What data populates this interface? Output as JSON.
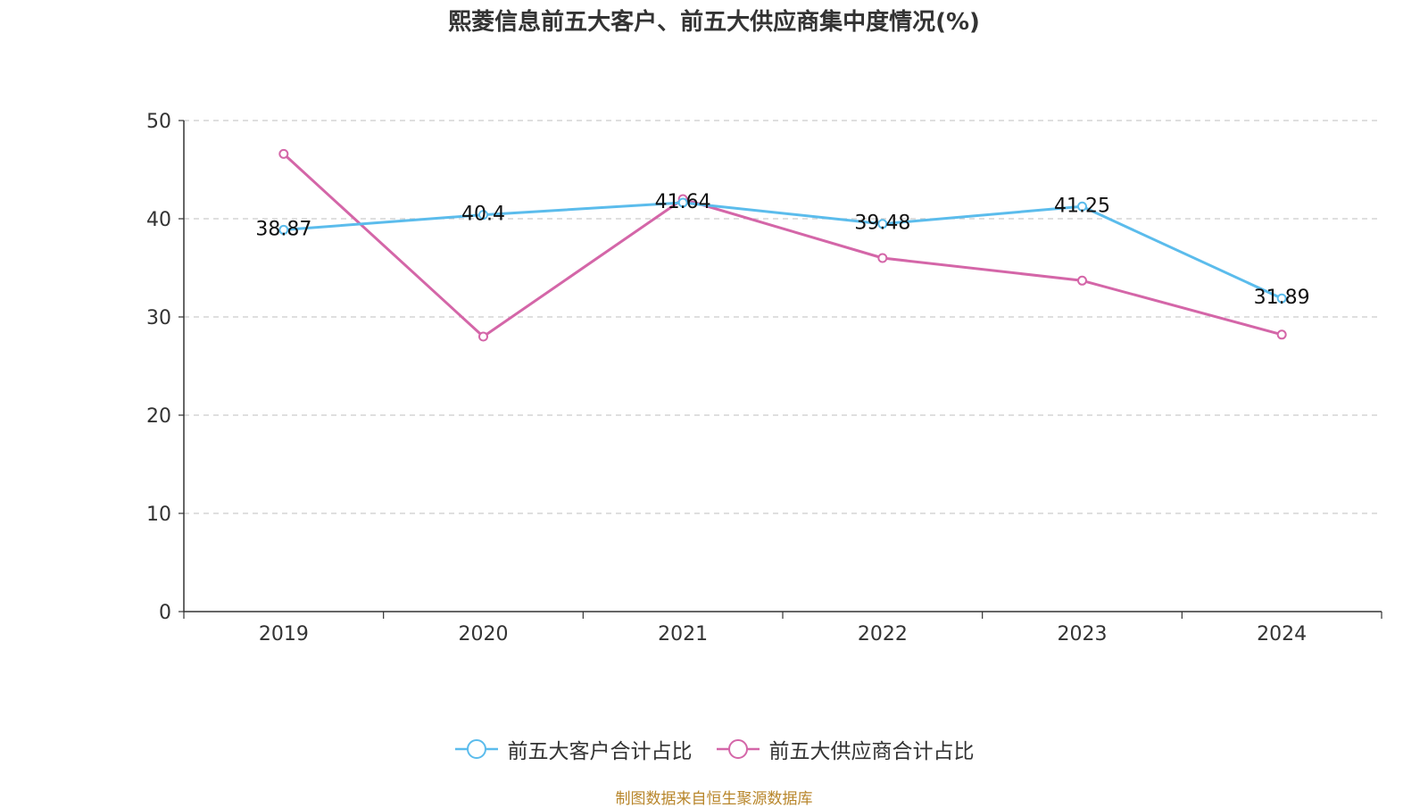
{
  "title": "熙菱信息前五大客户、前五大供应商集中度情况(%)",
  "source": "制图数据来自恒生聚源数据库",
  "colors": {
    "series1": "#5bbcec",
    "series2": "#d466a8",
    "axis": "#333333",
    "grid": "#cccccc"
  },
  "chart_data": {
    "type": "line",
    "title": "熙菱信息前五大客户、前五大供应商集中度情况(%)",
    "categories": [
      "2019",
      "2020",
      "2021",
      "2022",
      "2023",
      "2024"
    ],
    "ylim": [
      0,
      50
    ],
    "yticks": [
      "0",
      "10",
      "20",
      "30",
      "40",
      "50"
    ],
    "grid": true,
    "legend_position": "bottom-center",
    "series": [
      {
        "name": "前五大客户合计占比",
        "values": [
          38.87,
          40.4,
          41.64,
          39.48,
          41.25,
          31.89
        ],
        "labels": [
          "38.87",
          "40.4",
          "41.64",
          "39.48",
          "41.25",
          "31.89"
        ]
      },
      {
        "name": "前五大供应商合计占比",
        "values": [
          46.6,
          28.0,
          42.0,
          36.0,
          33.7,
          28.2
        ]
      }
    ]
  }
}
